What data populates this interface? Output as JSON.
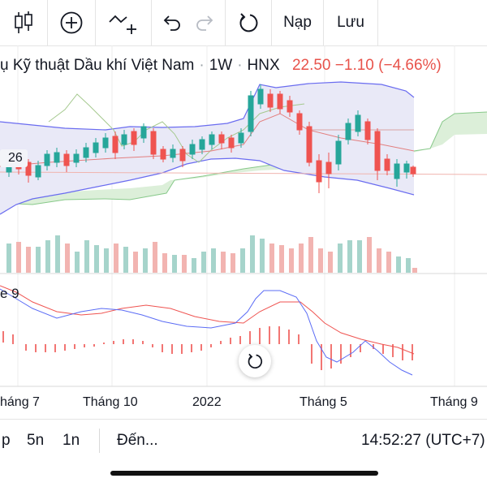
{
  "toolbar": {
    "candle_icon": "candlestick-icon",
    "add_icon": "plus-circle-icon",
    "indicator_icon": "indicator-add-icon",
    "undo_icon": "undo-icon",
    "redo_icon": "redo-icon",
    "reset_icon": "reload-icon",
    "nap_label": "Nạp",
    "luu_label": "Lưu"
  },
  "legend": {
    "name": "ụ Kỹ thuật Dầu khí Việt Nam",
    "interval": "1W",
    "exchange": "HNX",
    "price": "22.50",
    "change": "−1.10",
    "change_pct": "(−4.66%)",
    "sep": "·"
  },
  "price_tag": "26",
  "macd_label": "e 9",
  "x_axis": {
    "labels": [
      "háng 7",
      "Tháng 10",
      "2022",
      "Tháng 5",
      "Tháng 9"
    ]
  },
  "bottombar": {
    "partial": "p",
    "range_5n": "5n",
    "range_1n": "1n",
    "goto_label": "Đến...",
    "clock": "14:52:27 (UTC+7)"
  },
  "colors": {
    "up": "#26a69a",
    "down": "#ef5350",
    "up_vol": "#a6d4cb",
    "down_vol": "#f2b4b1",
    "band_fill": "#e9e9f7",
    "band_line": "#6a6cf0",
    "cloud_fill": "#dcefd9",
    "cloud_line": "#88c98a",
    "macd_line": "#5b6cf5",
    "signal_line": "#ef5350"
  }
}
